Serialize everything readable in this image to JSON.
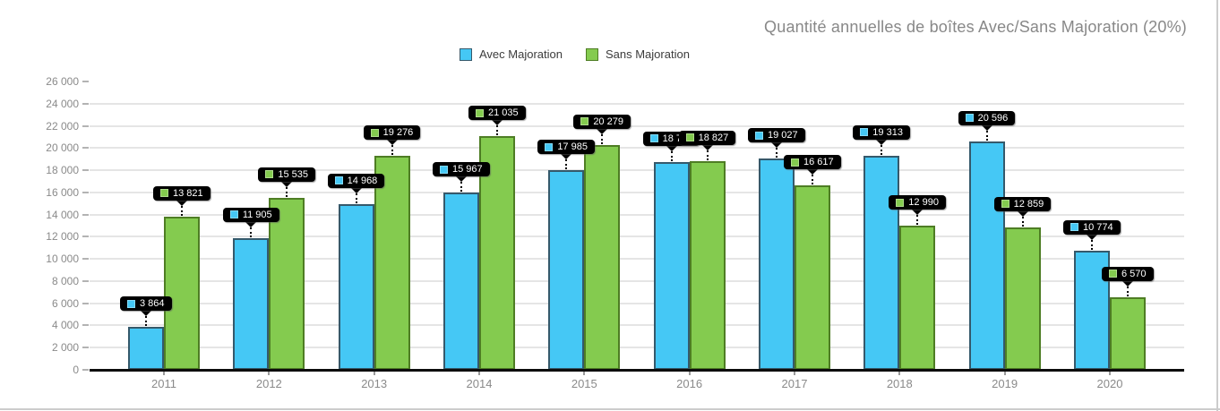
{
  "title": "Quantité annuelles de boîtes Avec/Sans Majoration (20%)",
  "legend": {
    "items": [
      {
        "label": "Avec Majoration",
        "color": "#45C8F5",
        "border_color": "#35596B"
      },
      {
        "label": "Sans Majoration",
        "color": "#84CB4F",
        "border_color": "#4E7D24"
      }
    ]
  },
  "chart_data": {
    "type": "bar",
    "title": "Quantité annuelles de boîtes Avec/Sans Majoration (20%)",
    "categories": [
      "2011",
      "2012",
      "2013",
      "2014",
      "2015",
      "2016",
      "2017",
      "2018",
      "2019",
      "2020"
    ],
    "series": [
      {
        "name": "Avec Majoration",
        "color": "#45C8F5",
        "border_color": "#35596B",
        "values": [
          3864,
          11905,
          14968,
          15967,
          17985,
          18760,
          19027,
          19313,
          20596,
          10774
        ],
        "labels": [
          "3 864",
          "11 905",
          "14 968",
          "15 967",
          "17 985",
          "18 760",
          "19 027",
          "19 313",
          "20 596",
          "10 774"
        ]
      },
      {
        "name": "Sans Majoration",
        "color": "#84CB4F",
        "border_color": "#4E7D24",
        "values": [
          13821,
          15535,
          19276,
          21035,
          20279,
          18827,
          16617,
          12990,
          12859,
          6570
        ],
        "labels": [
          "13 821",
          "15 535",
          "19 276",
          "21 035",
          "20 279",
          "18 827",
          "16 617",
          "12 990",
          "12 859",
          "6 570"
        ]
      }
    ],
    "xlabel": "",
    "ylabel": "",
    "ylim": [
      0,
      26000
    ],
    "ytick_step": 2000,
    "ytick_labels": [
      "0",
      "2 000",
      "4 000",
      "6 000",
      "8 000",
      "10 000",
      "12 000",
      "14 000",
      "16 000",
      "18 000",
      "20 000",
      "22 000",
      "24 000",
      "26 000"
    ],
    "grid": true,
    "legend_position": "top",
    "value_labels_style": "black-tooltip-with-dotted-connector"
  }
}
